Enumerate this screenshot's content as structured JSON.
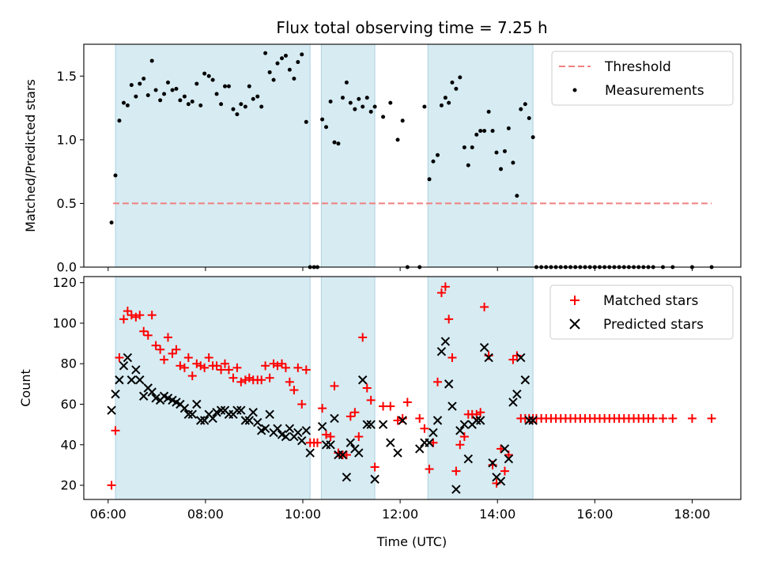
{
  "chart_data": [
    {
      "type": "scatter",
      "title": "Flux total observing time = 7.25 h",
      "xlabel": "",
      "ylabel": "Matched/Predicted stars",
      "x_unit": "hours (UTC)",
      "xlim": [
        5.5,
        19.0
      ],
      "ylim": [
        0,
        1.75
      ],
      "yticks": [
        0.0,
        0.5,
        1.0,
        1.5
      ],
      "ytick_labels": [
        "0.0",
        "0.5",
        "1.0",
        "1.5"
      ],
      "legend_position": "top-right",
      "shaded_intervals": [
        [
          6.15,
          10.15
        ],
        [
          10.38,
          11.48
        ],
        [
          12.57,
          14.73
        ]
      ],
      "series": [
        {
          "name": "Threshold",
          "style": "dashed-line",
          "color": "#f08080",
          "x": [
            6.1,
            18.4
          ],
          "y": [
            0.5,
            0.5
          ]
        },
        {
          "name": "Measurements",
          "style": "dot",
          "color": "#000000",
          "x": [
            6.07,
            6.15,
            6.23,
            6.32,
            6.4,
            6.48,
            6.57,
            6.65,
            6.73,
            6.82,
            6.9,
            6.98,
            7.07,
            7.15,
            7.23,
            7.32,
            7.4,
            7.48,
            7.57,
            7.65,
            7.73,
            7.82,
            7.9,
            7.98,
            8.07,
            8.15,
            8.23,
            8.32,
            8.4,
            8.48,
            8.57,
            8.65,
            8.73,
            8.82,
            8.9,
            8.98,
            9.07,
            9.15,
            9.23,
            9.32,
            9.4,
            9.48,
            9.57,
            9.65,
            9.73,
            9.82,
            9.9,
            9.98,
            10.07,
            10.15,
            10.23,
            10.3,
            10.4,
            10.48,
            10.57,
            10.65,
            10.73,
            10.82,
            10.9,
            10.98,
            11.07,
            11.15,
            11.23,
            11.32,
            11.4,
            11.48,
            11.65,
            11.8,
            11.95,
            12.05,
            12.15,
            12.4,
            12.5,
            12.6,
            12.68,
            12.77,
            12.85,
            12.93,
            13.0,
            13.07,
            13.15,
            13.23,
            13.32,
            13.4,
            13.48,
            13.57,
            13.65,
            13.73,
            13.82,
            13.9,
            13.98,
            14.07,
            14.15,
            14.23,
            14.32,
            14.4,
            14.48,
            14.57,
            14.65,
            14.73,
            14.8,
            14.9,
            15.0,
            15.1,
            15.2,
            15.3,
            15.4,
            15.5,
            15.6,
            15.7,
            15.8,
            15.9,
            16.0,
            16.1,
            16.2,
            16.3,
            16.4,
            16.5,
            16.6,
            16.7,
            16.8,
            16.9,
            17.0,
            17.1,
            17.2,
            17.4,
            17.6,
            18.0,
            18.4
          ],
          "y": [
            0.35,
            0.72,
            1.15,
            1.29,
            1.27,
            1.43,
            1.34,
            1.44,
            1.48,
            1.35,
            1.62,
            1.39,
            1.31,
            1.36,
            1.45,
            1.39,
            1.4,
            1.31,
            1.34,
            1.28,
            1.3,
            1.44,
            1.27,
            1.52,
            1.5,
            1.47,
            1.36,
            1.28,
            1.42,
            1.42,
            1.24,
            1.2,
            1.28,
            1.26,
            1.42,
            1.32,
            1.34,
            1.26,
            1.68,
            1.53,
            1.47,
            1.6,
            1.64,
            1.66,
            1.55,
            1.48,
            1.61,
            1.67,
            1.14,
            0.0,
            0.0,
            0.0,
            1.16,
            1.1,
            1.3,
            0.98,
            0.97,
            1.33,
            1.45,
            1.29,
            1.24,
            1.32,
            1.26,
            1.33,
            1.22,
            1.26,
            1.18,
            1.29,
            1.0,
            1.15,
            0.0,
            0.0,
            1.26,
            0.69,
            0.83,
            0.88,
            1.27,
            1.33,
            1.29,
            1.45,
            1.4,
            1.49,
            0.94,
            0.8,
            0.94,
            1.04,
            1.07,
            1.07,
            1.22,
            1.07,
            0.9,
            0.77,
            0.91,
            1.09,
            0.82,
            0.56,
            1.24,
            1.28,
            1.17,
            1.02,
            0.0,
            0.0,
            0.0,
            0.0,
            0.0,
            0.0,
            0.0,
            0.0,
            0.0,
            0.0,
            0.0,
            0.0,
            0.0,
            0.0,
            0.0,
            0.0,
            0.0,
            0.0,
            0.0,
            0.0,
            0.0,
            0.0,
            0.0,
            0.0,
            0.0,
            0.0,
            0.0,
            0.0,
            0.0
          ]
        }
      ]
    },
    {
      "type": "scatter",
      "title": "",
      "xlabel": "Time (UTC)",
      "ylabel": "Count",
      "x_unit": "hours (UTC)",
      "xlim": [
        5.5,
        19.0
      ],
      "ylim": [
        13,
        123
      ],
      "xticks": [
        6,
        8,
        10,
        12,
        14,
        16,
        18
      ],
      "xtick_labels": [
        "06:00",
        "08:00",
        "10:00",
        "12:00",
        "14:00",
        "16:00",
        "18:00"
      ],
      "yticks": [
        20,
        40,
        60,
        80,
        100,
        120
      ],
      "ytick_labels": [
        "20",
        "40",
        "60",
        "80",
        "100",
        "120"
      ],
      "legend_position": "top-right",
      "shaded_intervals": [
        [
          6.15,
          10.15
        ],
        [
          10.38,
          11.48
        ],
        [
          12.57,
          14.73
        ]
      ],
      "series": [
        {
          "name": "Matched stars",
          "style": "plus",
          "color": "#ff0000",
          "x": [
            6.07,
            6.15,
            6.23,
            6.32,
            6.4,
            6.48,
            6.57,
            6.65,
            6.73,
            6.82,
            6.9,
            6.98,
            7.07,
            7.15,
            7.23,
            7.32,
            7.4,
            7.48,
            7.57,
            7.65,
            7.73,
            7.82,
            7.9,
            7.98,
            8.07,
            8.15,
            8.23,
            8.32,
            8.4,
            8.48,
            8.57,
            8.65,
            8.73,
            8.82,
            8.9,
            8.98,
            9.07,
            9.15,
            9.23,
            9.32,
            9.4,
            9.48,
            9.57,
            9.65,
            9.73,
            9.82,
            9.9,
            9.98,
            10.07,
            10.15,
            10.23,
            10.3,
            10.4,
            10.48,
            10.57,
            10.65,
            10.73,
            10.82,
            10.9,
            10.98,
            11.07,
            11.15,
            11.23,
            11.32,
            11.4,
            11.48,
            11.65,
            11.8,
            11.95,
            12.05,
            12.15,
            12.4,
            12.5,
            12.6,
            12.68,
            12.77,
            12.85,
            12.93,
            13.0,
            13.07,
            13.15,
            13.23,
            13.32,
            13.4,
            13.48,
            13.57,
            13.65,
            13.73,
            13.82,
            13.9,
            13.98,
            14.07,
            14.15,
            14.23,
            14.32,
            14.4,
            14.48,
            14.57,
            14.65,
            14.73,
            14.8,
            14.9,
            15.0,
            15.1,
            15.2,
            15.3,
            15.4,
            15.5,
            15.6,
            15.7,
            15.8,
            15.9,
            16.0,
            16.1,
            16.2,
            16.3,
            16.4,
            16.5,
            16.6,
            16.7,
            16.8,
            16.9,
            17.0,
            17.1,
            17.2,
            17.4,
            17.6,
            18.0,
            18.4
          ],
          "y": [
            20,
            47,
            83,
            102,
            106,
            104,
            103,
            104,
            96,
            94,
            104,
            89,
            87,
            82,
            93,
            85,
            87,
            79,
            78,
            83,
            74,
            80,
            79,
            78,
            83,
            79,
            79,
            77,
            80,
            77,
            73,
            78,
            71,
            72,
            73,
            72,
            72,
            72,
            79,
            73,
            80,
            79,
            80,
            78,
            71,
            67,
            78,
            60,
            77,
            41,
            41,
            41,
            58,
            45,
            44,
            69,
            36,
            35,
            35,
            54,
            56,
            44,
            93,
            68,
            62,
            29,
            59,
            59,
            52,
            53,
            61,
            53,
            48,
            28,
            41,
            71,
            115,
            118,
            102,
            83,
            27,
            40,
            44,
            55,
            55,
            55,
            56,
            108,
            84,
            30,
            21,
            38,
            27,
            35,
            82,
            84,
            53,
            53,
            53,
            53,
            53,
            53,
            53,
            53,
            53,
            53,
            53,
            53,
            53,
            53,
            53,
            53,
            53,
            53,
            53,
            53,
            53,
            53,
            53,
            53,
            53,
            53,
            53,
            53,
            53,
            53,
            53,
            53,
            53
          ]
        },
        {
          "name": "Predicted stars",
          "style": "x",
          "color": "#000000",
          "x": [
            6.07,
            6.15,
            6.23,
            6.32,
            6.4,
            6.48,
            6.57,
            6.65,
            6.73,
            6.82,
            6.9,
            6.98,
            7.07,
            7.15,
            7.23,
            7.32,
            7.4,
            7.48,
            7.57,
            7.65,
            7.73,
            7.82,
            7.9,
            7.98,
            8.07,
            8.15,
            8.23,
            8.32,
            8.4,
            8.48,
            8.57,
            8.65,
            8.73,
            8.82,
            8.9,
            8.98,
            9.07,
            9.15,
            9.23,
            9.32,
            9.4,
            9.48,
            9.57,
            9.65,
            9.73,
            9.82,
            9.9,
            9.98,
            10.07,
            10.15,
            10.4,
            10.48,
            10.57,
            10.65,
            10.73,
            10.82,
            10.9,
            10.98,
            11.07,
            11.15,
            11.23,
            11.32,
            11.4,
            11.48,
            11.65,
            11.8,
            11.95,
            12.05,
            12.4,
            12.5,
            12.6,
            12.68,
            12.77,
            12.85,
            12.93,
            13.0,
            13.07,
            13.15,
            13.23,
            13.32,
            13.4,
            13.48,
            13.57,
            13.65,
            13.73,
            13.82,
            13.9,
            13.98,
            14.07,
            14.15,
            14.23,
            14.32,
            14.4,
            14.48,
            14.57,
            14.65,
            14.73
          ],
          "y": [
            57,
            65,
            72,
            79,
            83,
            72,
            77,
            72,
            64,
            68,
            66,
            63,
            62,
            64,
            63,
            62,
            61,
            60,
            58,
            55,
            55,
            60,
            52,
            52,
            55,
            53,
            56,
            57,
            57,
            55,
            55,
            57,
            57,
            52,
            52,
            56,
            51,
            47,
            48,
            55,
            46,
            48,
            45,
            44,
            48,
            44,
            46,
            42,
            47,
            36,
            49,
            40,
            40,
            53,
            35,
            35,
            24,
            41,
            38,
            36,
            72,
            50,
            50,
            23,
            50,
            41,
            36,
            52,
            38,
            41,
            41,
            46,
            52,
            86,
            91,
            70,
            59,
            18,
            47,
            50,
            33,
            50,
            52,
            52,
            88,
            83,
            31,
            24,
            22,
            38,
            33,
            61,
            65,
            83,
            72,
            52,
            52
          ]
        }
      ]
    }
  ]
}
